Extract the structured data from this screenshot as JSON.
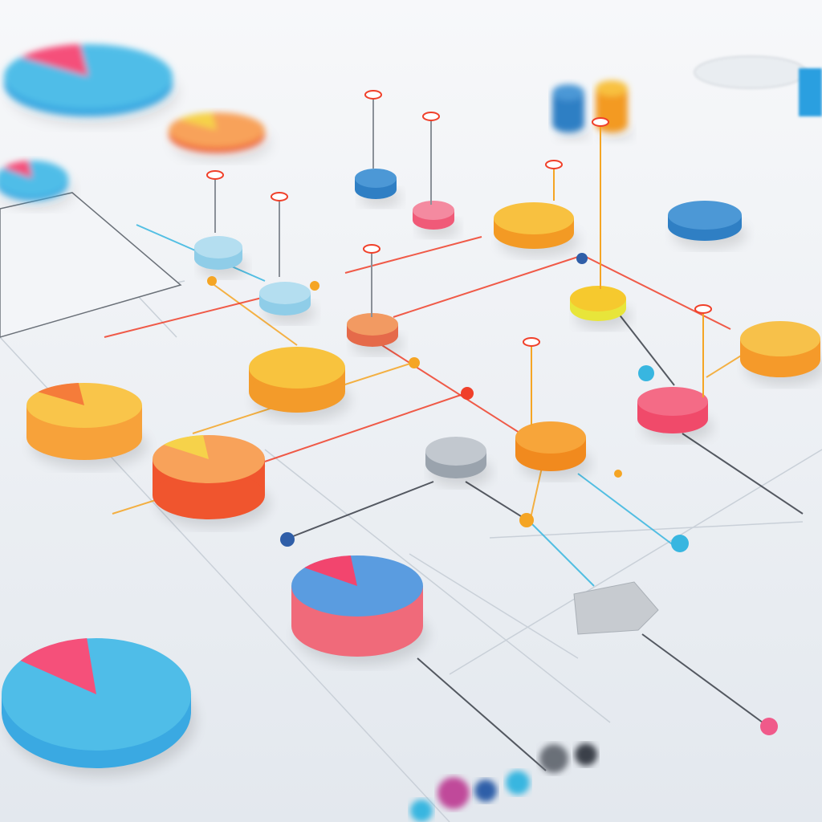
{
  "palette": {
    "background_top": "#f7f8fa",
    "background_bottom": "#e3e8ee",
    "grid_line": "#c9d0d8",
    "connector_red": "#f0402a",
    "connector_orange": "#f5a524",
    "connector_blue": "#38b6e0",
    "connector_dark": "#3a3f48"
  },
  "discs": [
    {
      "color": "#f7a23a",
      "top": "#f9c54a",
      "accent": "#f57c3a"
    },
    {
      "color": "#f0552e",
      "top": "#f8a25a",
      "accent": "#f6d24a"
    },
    {
      "color": "#f39b2a",
      "top": "#f8c33e"
    },
    {
      "color": "#e8e53a",
      "top": "#f6c92e"
    },
    {
      "color": "#f39a24",
      "top": "#f8c140"
    },
    {
      "color": "#f04a6a",
      "top": "#f46b86"
    },
    {
      "color": "#f18a1e",
      "top": "#f7a53a"
    },
    {
      "color": "#9aa3ad",
      "top": "#c2c8cf"
    },
    {
      "color": "#f06a7a",
      "top": "#5a9ce0",
      "accent": "#f2456e"
    },
    {
      "color": "#3aa9e2",
      "top": "#4fbde8",
      "accent": "#f5507a"
    },
    {
      "color": "#2f7fc4",
      "top": "#4c98d6"
    },
    {
      "color": "#f59a2a",
      "top": "#f7c14a"
    },
    {
      "color": "#8fcde8",
      "top": "#b4def0"
    },
    {
      "color": "#e56a4a",
      "top": "#f29a62"
    }
  ]
}
